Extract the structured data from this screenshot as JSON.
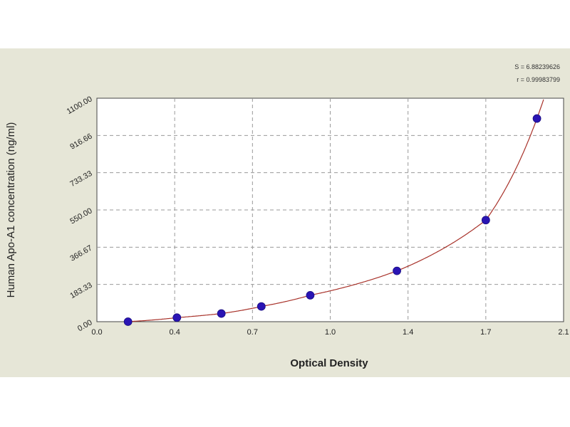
{
  "chart_data": {
    "type": "scatter",
    "title": "",
    "xlabel": "Optical Density",
    "ylabel": "Human Apo-A1 concentration (ng/ml)",
    "xlim": [
      0.0,
      2.1
    ],
    "ylim": [
      0.0,
      1100.0
    ],
    "x_ticks": [
      "0.0",
      "0.4",
      "0.7",
      "1.0",
      "1.4",
      "1.7",
      "2.1"
    ],
    "x_tick_values": [
      0.0,
      0.35,
      0.7,
      1.05,
      1.4,
      1.75,
      2.1
    ],
    "y_ticks": [
      "0.00",
      "183.33",
      "366.67",
      "550.00",
      "733.33",
      "916.66",
      "1100.00"
    ],
    "y_tick_values": [
      0.0,
      183.33,
      366.67,
      550.0,
      733.33,
      916.66,
      1100.0
    ],
    "grid": true,
    "series": [
      {
        "x": [
          0.14,
          0.36,
          0.56,
          0.74,
          0.96,
          1.35,
          1.75,
          1.98
        ],
        "y": [
          0,
          20,
          40,
          75,
          130,
          250,
          500,
          1000
        ],
        "marker_color": "#2a14b4",
        "fit_curve_color": "#a8322a"
      }
    ],
    "fit_stats": {
      "s_text": "S = 6.88239626",
      "r_text": "r = 0.99983799"
    }
  }
}
